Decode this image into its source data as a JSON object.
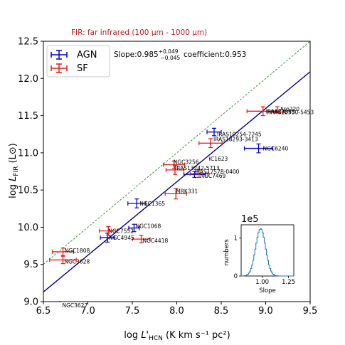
{
  "note": "FIR: far infrared (100 µm - 1000 µm)",
  "chart_data": {
    "type": "scatter",
    "xlabel_prefix": "log ",
    "xlabel_symbol": "L'",
    "xlabel_sub": "HCN",
    "xlabel_units": " (K km s⁻¹ pc²)",
    "ylabel_prefix": "log ",
    "ylabel_symbol": "L",
    "ylabel_sub": "FIR",
    "ylabel_units": " (L⊙)",
    "xlim": [
      6.5,
      9.5
    ],
    "ylim": [
      9.0,
      12.5
    ],
    "xticks": [
      "6.5",
      "7.0",
      "7.5",
      "8.0",
      "8.5",
      "9.0",
      "9.5"
    ],
    "yticks": [
      "9.0",
      "9.5",
      "10.0",
      "10.5",
      "11.0",
      "11.5",
      "12.0",
      "12.5"
    ],
    "legend": {
      "placement": "top-left",
      "entries": [
        {
          "label": "AGN",
          "color": "#0000cc"
        },
        {
          "label": "SF",
          "color": "#e41a1c"
        }
      ]
    },
    "fit_stats": {
      "slope_label": "Slope:0.985",
      "slope_plus": "+0.049",
      "slope_minus": "−0.045",
      "coef_label": "coefficient:0.953"
    },
    "fit_line": {
      "color": "#00008b",
      "x": [
        6.5,
        9.5
      ],
      "y": [
        9.13,
        12.09
      ]
    },
    "unity_line": {
      "color": "#2e8b2e",
      "style": "dashed",
      "x": [
        6.5,
        9.5
      ],
      "y": [
        9.5,
        12.5
      ]
    },
    "series": [
      {
        "name": "AGN",
        "color": "#0000cc",
        "points": [
          {
            "x": 8.42,
            "y": 11.28,
            "xerr": 0.08,
            "yerr": 0.05,
            "label": "IRAS19254-7245"
          },
          {
            "x": 8.38,
            "y": 11.12,
            "xerr": 0.0,
            "yerr": 0.0,
            "label": "IRAS18293-3413"
          },
          {
            "x": 8.92,
            "y": 11.06,
            "xerr": 0.16,
            "yerr": 0.06,
            "label": "NGC6240"
          },
          {
            "x": 8.37,
            "y": 10.92,
            "xerr": 0.0,
            "yerr": 0.0,
            "label": "IC1623"
          },
          {
            "x": 8.2,
            "y": 10.71,
            "xerr": 0.12,
            "yerr": 0.04,
            "label": "NGC7469"
          },
          {
            "x": 7.55,
            "y": 10.32,
            "xerr": 0.1,
            "yerr": 0.06,
            "label": "NGC1365"
          },
          {
            "x": 7.52,
            "y": 9.99,
            "xerr": 0.06,
            "yerr": 0.05,
            "label": "NGC1068"
          },
          {
            "x": 7.22,
            "y": 9.86,
            "xerr": 0.08,
            "yerr": 0.06,
            "label": "NGC4945"
          },
          {
            "x": 6.68,
            "y": 9.0,
            "xerr": 0.0,
            "yerr": 0.0,
            "label": "NGC3627"
          }
        ]
      },
      {
        "name": "SF",
        "color": "#e41a1c",
        "points": [
          {
            "x": 8.97,
            "y": 11.56,
            "xerr": 0.18,
            "yerr": 0.06,
            "label": "IRAS23365"
          },
          {
            "x": 9.13,
            "y": 11.58,
            "xerr": 0.0,
            "yerr": 0.04,
            "label": "Arp220"
          },
          {
            "x": 9.12,
            "y": 11.55,
            "xerr": 0.1,
            "yerr": 0.0,
            "label": "IRAS20550-5453"
          },
          {
            "x": 8.38,
            "y": 11.13,
            "xerr": 0.13,
            "yerr": 0.06,
            "label": "IRAS18293-3413"
          },
          {
            "x": 7.97,
            "y": 10.84,
            "xerr": 0.12,
            "yerr": 0.05,
            "label": "NGC3256"
          },
          {
            "x": 7.98,
            "y": 10.77,
            "xerr": 0.1,
            "yerr": 0.06,
            "label": "IRAS13242-5713"
          },
          {
            "x": 8.25,
            "y": 10.72,
            "xerr": 0.1,
            "yerr": 0.05,
            "label": "IRAS17578-0400"
          },
          {
            "x": 7.99,
            "y": 10.45,
            "xerr": 0.12,
            "yerr": 0.07,
            "label": "MRK331"
          },
          {
            "x": 7.23,
            "y": 9.95,
            "xerr": 0.1,
            "yerr": 0.06,
            "label": "NGC7552"
          },
          {
            "x": 7.6,
            "y": 9.84,
            "xerr": 0.1,
            "yerr": 0.05,
            "label": "NGC4418"
          },
          {
            "x": 6.72,
            "y": 9.67,
            "xerr": 0.12,
            "yerr": 0.05,
            "label": "NGC1808"
          },
          {
            "x": 6.72,
            "y": 9.56,
            "xerr": 0.15,
            "yerr": 0.05,
            "label": "NGC3628"
          }
        ]
      }
    ],
    "inset": {
      "type": "histogram",
      "color": "#1f77b4",
      "multiplier": "1e5",
      "xlabel": "Slope",
      "ylabel": "numbers",
      "xlim": [
        0.8,
        1.3
      ],
      "ylim": [
        0,
        1.35
      ],
      "xticks": [
        "1.00",
        "1.25"
      ],
      "yticks": [
        "0",
        "1"
      ],
      "mean": 0.985,
      "sigma": 0.047,
      "peak": 1.25
    }
  }
}
